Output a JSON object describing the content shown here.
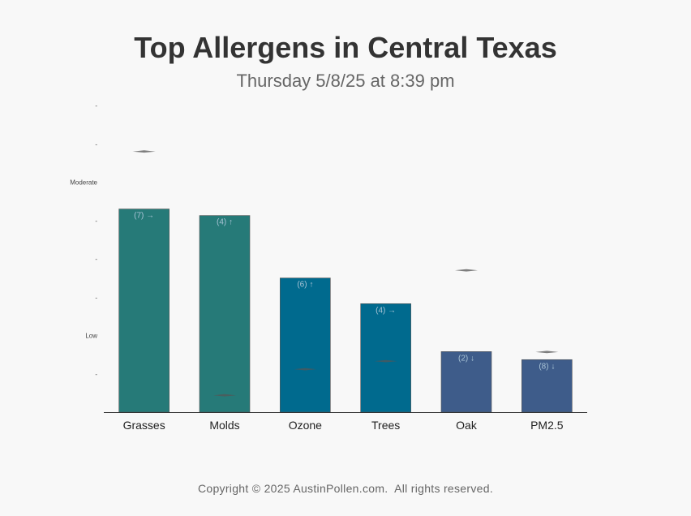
{
  "title": "Top Allergens in Central Texas",
  "subtitle": "Thursday 5/8/25 at 8:39 pm",
  "footer": "Copyright © 2025 AustinPollen.com.  All rights reserved.",
  "chart_data": {
    "type": "bar",
    "title": "Top Allergens in Central Texas",
    "subtitle": "Thursday 5/8/25 at 8:39 pm",
    "categories": [
      "Grasses",
      "Molds",
      "Ozone",
      "Trees",
      "Oak",
      "PM2.5"
    ],
    "values": [
      5.3,
      5.13,
      3.5,
      2.83,
      1.58,
      1.37
    ],
    "previous_values": [
      6.8,
      0.44,
      1.12,
      1.33,
      3.7,
      1.57
    ],
    "labels": [
      "(7) →",
      "(4) ↑",
      "(6) ↑",
      "(4) →",
      "(2) ↓",
      "(8) ↓"
    ],
    "colors": [
      "#267a78",
      "#267a78",
      "#006a8e",
      "#006a8e",
      "#3e5c8a",
      "#3e5c8a"
    ],
    "ylim": [
      0,
      8
    ],
    "yticks": [
      {
        "value": 1,
        "label": "-"
      },
      {
        "value": 2,
        "label": "Low"
      },
      {
        "value": 3,
        "label": "-"
      },
      {
        "value": 4,
        "label": "-"
      },
      {
        "value": 5,
        "label": "-"
      },
      {
        "value": 6,
        "label": "Moderate"
      },
      {
        "value": 7,
        "label": "-"
      },
      {
        "value": 8,
        "label": "-"
      }
    ],
    "grid": false,
    "legend": "none"
  }
}
